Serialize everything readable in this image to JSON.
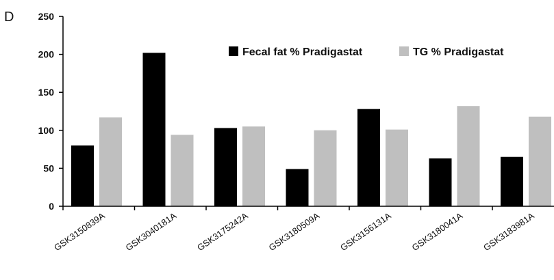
{
  "panel_label": "D",
  "chart_data": {
    "type": "bar",
    "categories": [
      "GSK3150839A",
      "GSK3040181A",
      "GSK3175242A",
      "GSK3180509A",
      "GSK3156131A",
      "GSK3180041A",
      "GSK3183981A"
    ],
    "series": [
      {
        "name": "Fecal fat % Pradigastat",
        "color": "#000000",
        "values": [
          80,
          202,
          103,
          49,
          128,
          63,
          65
        ]
      },
      {
        "name": "TG % Pradigastat",
        "color": "#bfbfbf",
        "values": [
          117,
          94,
          105,
          100,
          101,
          132,
          118
        ]
      }
    ],
    "ylim": [
      0,
      250
    ],
    "yticks": [
      0,
      50,
      100,
      150,
      200,
      250
    ],
    "grid": false,
    "legend_position": "top-right"
  }
}
